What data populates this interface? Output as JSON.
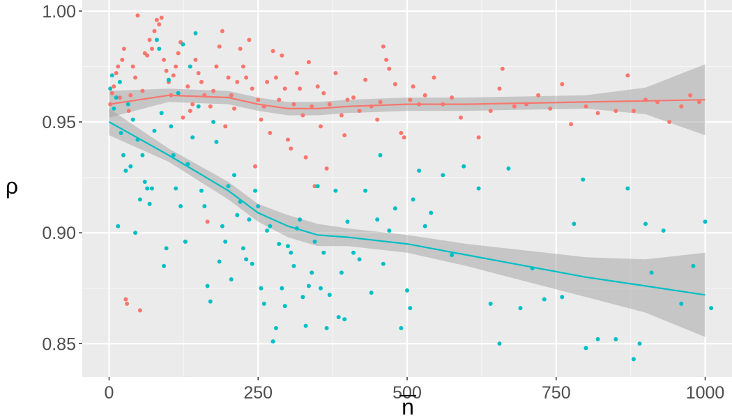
{
  "chart_data": {
    "type": "scatter",
    "xlabel": "n",
    "ylabel": "ρ",
    "xlim": [
      -45,
      1045
    ],
    "ylim": [
      0.835,
      1.005
    ],
    "x_ticks": [
      0,
      250,
      500,
      750,
      1000
    ],
    "x_tick_labels": [
      "0",
      "250",
      "500",
      "750",
      "1000"
    ],
    "y_ticks": [
      0.85,
      0.9,
      0.95,
      1.0
    ],
    "y_tick_labels": [
      "0.85",
      "0.90",
      "0.95",
      "1.00"
    ],
    "grid": true,
    "legend": "none",
    "colors": {
      "panel": "#ebebeb",
      "grid_major": "#ffffff",
      "grid_minor": "#f5f5f5",
      "ribbon": "#999999",
      "red": "#f8766d",
      "cyan": "#00bfc4"
    },
    "series": [
      {
        "color": "#f8766d",
        "points": [
          [
            2,
            0.958
          ],
          [
            5,
            0.963
          ],
          [
            8,
            0.966
          ],
          [
            12,
            0.972
          ],
          [
            15,
            0.975
          ],
          [
            18,
            0.961
          ],
          [
            22,
            0.978
          ],
          [
            25,
            0.983
          ],
          [
            28,
            0.87
          ],
          [
            30,
            0.868
          ],
          [
            33,
            0.955
          ],
          [
            36,
            0.962
          ],
          [
            40,
            0.975
          ],
          [
            44,
            0.97
          ],
          [
            48,
            0.998
          ],
          [
            52,
            0.865
          ],
          [
            56,
            0.964
          ],
          [
            60,
            0.981
          ],
          [
            64,
            0.98
          ],
          [
            68,
            0.987
          ],
          [
            72,
            0.983
          ],
          [
            76,
            0.991
          ],
          [
            80,
            0.996
          ],
          [
            84,
            0.994
          ],
          [
            88,
            0.997
          ],
          [
            92,
            0.978
          ],
          [
            96,
            0.973
          ],
          [
            100,
            0.968
          ],
          [
            104,
            0.962
          ],
          [
            108,
            0.971
          ],
          [
            112,
            0.975
          ],
          [
            116,
            0.981
          ],
          [
            120,
            0.986
          ],
          [
            124,
            0.952
          ],
          [
            128,
            0.896
          ],
          [
            132,
            0.966
          ],
          [
            136,
            0.955
          ],
          [
            140,
            0.958
          ],
          [
            145,
            0.978
          ],
          [
            150,
            0.972
          ],
          [
            155,
            0.968
          ],
          [
            160,
            0.962
          ],
          [
            165,
            0.905
          ],
          [
            170,
            0.957
          ],
          [
            175,
            0.964
          ],
          [
            180,
            0.975
          ],
          [
            185,
            0.984
          ],
          [
            190,
            0.991
          ],
          [
            195,
            0.948
          ],
          [
            200,
            0.97
          ],
          [
            205,
            0.962
          ],
          [
            210,
            0.956
          ],
          [
            215,
            0.968
          ],
          [
            220,
            0.983
          ],
          [
            225,
            0.975
          ],
          [
            230,
            0.97
          ],
          [
            235,
            0.987
          ],
          [
            240,
            0.965
          ],
          [
            245,
            0.93
          ],
          [
            250,
            0.96
          ],
          [
            255,
            0.951
          ],
          [
            260,
            0.957
          ],
          [
            265,
            0.968
          ],
          [
            270,
            0.945
          ],
          [
            275,
            0.982
          ],
          [
            280,
            0.97
          ],
          [
            285,
            0.96
          ],
          [
            290,
            0.98
          ],
          [
            295,
            0.965
          ],
          [
            300,
            0.942
          ],
          [
            305,
            0.938
          ],
          [
            310,
            0.958
          ],
          [
            315,
            0.972
          ],
          [
            320,
            0.965
          ],
          [
            325,
            0.953
          ],
          [
            330,
            0.934
          ],
          [
            335,
            0.977
          ],
          [
            340,
            0.957
          ],
          [
            345,
            0.921
          ],
          [
            350,
            0.966
          ],
          [
            355,
            0.948
          ],
          [
            360,
            0.963
          ],
          [
            365,
            0.929
          ],
          [
            370,
            0.958
          ],
          [
            380,
            0.972
          ],
          [
            390,
            0.953
          ],
          [
            395,
            0.944
          ],
          [
            400,
            0.96
          ],
          [
            410,
            0.961
          ],
          [
            420,
            0.955
          ],
          [
            430,
            0.969
          ],
          [
            440,
            0.957
          ],
          [
            450,
            0.951
          ],
          [
            455,
            0.959
          ],
          [
            460,
            0.984
          ],
          [
            465,
            0.978
          ],
          [
            470,
            0.974
          ],
          [
            480,
            0.967
          ],
          [
            490,
            0.945
          ],
          [
            495,
            0.943
          ],
          [
            505,
            0.96
          ],
          [
            510,
            0.966
          ],
          [
            520,
            0.958
          ],
          [
            530,
            0.962
          ],
          [
            545,
            0.97
          ],
          [
            560,
            0.958
          ],
          [
            575,
            0.961
          ],
          [
            590,
            0.952
          ],
          [
            620,
            0.943
          ],
          [
            640,
            0.955
          ],
          [
            655,
            0.965
          ],
          [
            660,
            0.974
          ],
          [
            680,
            0.957
          ],
          [
            700,
            0.958
          ],
          [
            720,
            0.962
          ],
          [
            740,
            0.956
          ],
          [
            760,
            0.967
          ],
          [
            775,
            0.949
          ],
          [
            800,
            0.957
          ],
          [
            820,
            0.954
          ],
          [
            850,
            0.955
          ],
          [
            870,
            0.971
          ],
          [
            880,
            0.955
          ],
          [
            900,
            0.96
          ],
          [
            920,
            0.959
          ],
          [
            940,
            0.95
          ],
          [
            960,
            0.957
          ],
          [
            975,
            0.962
          ],
          [
            990,
            0.959
          ]
        ]
      },
      {
        "color": "#00bfc4",
        "points": [
          [
            2,
            0.965
          ],
          [
            5,
            0.971
          ],
          [
            8,
            0.956
          ],
          [
            12,
            0.961
          ],
          [
            15,
            0.903
          ],
          [
            18,
            0.968
          ],
          [
            20,
            0.945
          ],
          [
            24,
            0.935
          ],
          [
            28,
            0.928
          ],
          [
            32,
            0.958
          ],
          [
            36,
            0.93
          ],
          [
            40,
            0.951
          ],
          [
            44,
            0.9
          ],
          [
            48,
            0.942
          ],
          [
            52,
            0.915
          ],
          [
            56,
            0.935
          ],
          [
            60,
            0.923
          ],
          [
            64,
            0.92
          ],
          [
            68,
            0.913
          ],
          [
            72,
            0.92
          ],
          [
            76,
            0.946
          ],
          [
            80,
            0.987
          ],
          [
            84,
            0.983
          ],
          [
            88,
            0.954
          ],
          [
            92,
            0.885
          ],
          [
            96,
            0.893
          ],
          [
            100,
            0.969
          ],
          [
            104,
            0.948
          ],
          [
            108,
            0.935
          ],
          [
            112,
            0.92
          ],
          [
            116,
            0.963
          ],
          [
            120,
            0.912
          ],
          [
            124,
            0.985
          ],
          [
            128,
            0.896
          ],
          [
            132,
            0.931
          ],
          [
            136,
            0.975
          ],
          [
            140,
            0.943
          ],
          [
            145,
            0.99
          ],
          [
            150,
            0.957
          ],
          [
            155,
            0.919
          ],
          [
            160,
            0.912
          ],
          [
            165,
            0.876
          ],
          [
            170,
            0.869
          ],
          [
            175,
            0.95
          ],
          [
            180,
            0.941
          ],
          [
            185,
            0.887
          ],
          [
            190,
            0.903
          ],
          [
            195,
            0.896
          ],
          [
            200,
            0.921
          ],
          [
            205,
            0.879
          ],
          [
            210,
            0.926
          ],
          [
            215,
            0.908
          ],
          [
            220,
            0.914
          ],
          [
            225,
            0.893
          ],
          [
            230,
            0.888
          ],
          [
            235,
            0.906
          ],
          [
            240,
            0.886
          ],
          [
            245,
            0.919
          ],
          [
            250,
            0.912
          ],
          [
            255,
            0.875
          ],
          [
            260,
            0.868
          ],
          [
            265,
            0.901
          ],
          [
            270,
            0.903
          ],
          [
            275,
            0.851
          ],
          [
            280,
            0.857
          ],
          [
            285,
            0.895
          ],
          [
            290,
            0.875
          ],
          [
            295,
            0.867
          ],
          [
            300,
            0.894
          ],
          [
            305,
            0.891
          ],
          [
            310,
            0.885
          ],
          [
            315,
            0.902
          ],
          [
            320,
            0.906
          ],
          [
            325,
            0.871
          ],
          [
            330,
            0.858
          ],
          [
            335,
            0.876
          ],
          [
            340,
            0.882
          ],
          [
            345,
            0.896
          ],
          [
            350,
            0.921
          ],
          [
            355,
            0.875
          ],
          [
            360,
            0.891
          ],
          [
            365,
            0.857
          ],
          [
            370,
            0.872
          ],
          [
            380,
            0.919
          ],
          [
            385,
            0.862
          ],
          [
            390,
            0.882
          ],
          [
            395,
            0.861
          ],
          [
            400,
            0.905
          ],
          [
            410,
            0.891
          ],
          [
            420,
            0.888
          ],
          [
            430,
            0.919
          ],
          [
            440,
            0.873
          ],
          [
            450,
            0.906
          ],
          [
            455,
            0.935
          ],
          [
            460,
            0.886
          ],
          [
            470,
            0.901
          ],
          [
            480,
            0.911
          ],
          [
            490,
            0.857
          ],
          [
            500,
            0.874
          ],
          [
            505,
            0.866
          ],
          [
            510,
            0.915
          ],
          [
            520,
            0.928
          ],
          [
            530,
            0.903
          ],
          [
            540,
            0.909
          ],
          [
            560,
            0.926
          ],
          [
            575,
            0.89
          ],
          [
            595,
            0.93
          ],
          [
            620,
            0.92
          ],
          [
            640,
            0.868
          ],
          [
            655,
            0.85
          ],
          [
            670,
            0.929
          ],
          [
            690,
            0.866
          ],
          [
            710,
            0.884
          ],
          [
            730,
            0.87
          ],
          [
            760,
            0.871
          ],
          [
            780,
            0.904
          ],
          [
            795,
            0.924
          ],
          [
            800,
            0.848
          ],
          [
            820,
            0.852
          ],
          [
            850,
            0.852
          ],
          [
            870,
            0.92
          ],
          [
            880,
            0.843
          ],
          [
            890,
            0.85
          ],
          [
            900,
            0.904
          ],
          [
            910,
            0.882
          ],
          [
            930,
            0.901
          ],
          [
            960,
            0.868
          ],
          [
            980,
            0.885
          ],
          [
            1000,
            0.905
          ],
          [
            1010,
            0.866
          ]
        ]
      }
    ],
    "smooth": [
      {
        "color": "#f8766d",
        "x": [
          0,
          100,
          200,
          250,
          300,
          350,
          400,
          500,
          600,
          700,
          800,
          900,
          1000
        ],
        "y": [
          0.958,
          0.962,
          0.961,
          0.958,
          0.956,
          0.956,
          0.957,
          0.958,
          0.958,
          0.9585,
          0.959,
          0.9595,
          0.96
        ],
        "se": [
          0.006,
          0.003,
          0.003,
          0.003,
          0.003,
          0.003,
          0.003,
          0.003,
          0.003,
          0.003,
          0.003,
          0.006,
          0.016
        ]
      },
      {
        "color": "#00bfc4",
        "x": [
          0,
          100,
          200,
          250,
          300,
          350,
          400,
          500,
          600,
          700,
          800,
          900,
          1000
        ],
        "y": [
          0.95,
          0.935,
          0.919,
          0.909,
          0.903,
          0.899,
          0.898,
          0.895,
          0.89,
          0.885,
          0.88,
          0.876,
          0.872
        ],
        "se": [
          0.006,
          0.003,
          0.004,
          0.004,
          0.005,
          0.005,
          0.004,
          0.004,
          0.005,
          0.007,
          0.009,
          0.012,
          0.019
        ]
      }
    ]
  }
}
